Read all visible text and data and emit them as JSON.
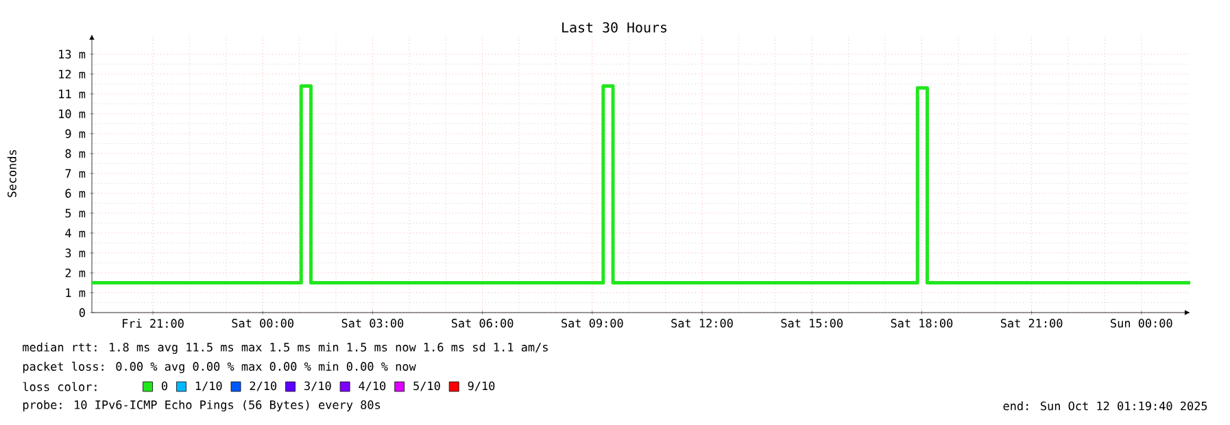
{
  "chart_data": {
    "type": "step",
    "title": "Last 30 Hours",
    "ylabel": "Seconds",
    "legend_title": "loss color:",
    "x": [
      "2025-10-10T19:20",
      "2025-10-11T01:03",
      "2025-10-11T01:19",
      "2025-10-11T09:18",
      "2025-10-11T09:34",
      "2025-10-11T17:53",
      "2025-10-11T18:09",
      "2025-10-12T01:20"
    ],
    "series": [
      {
        "name": "0",
        "color": "#22e61e",
        "values": [
          1.5,
          11.4,
          1.5,
          11.4,
          1.5,
          11.3,
          1.5,
          1.5
        ]
      },
      {
        "name": "1/10",
        "color": "#00b8ff",
        "values": [
          null,
          null,
          null,
          null,
          null,
          null,
          null,
          null
        ]
      },
      {
        "name": "2/10",
        "color": "#0059ff",
        "values": [
          null,
          null,
          null,
          null,
          null,
          null,
          null,
          null
        ]
      },
      {
        "name": "3/10",
        "color": "#5e00ff",
        "values": [
          null,
          null,
          null,
          null,
          null,
          null,
          null,
          null
        ]
      },
      {
        "name": "4/10",
        "color": "#7e00ff",
        "values": [
          null,
          null,
          null,
          null,
          null,
          null,
          null,
          null
        ]
      },
      {
        "name": "5/10",
        "color": "#dd00ff",
        "values": [
          null,
          null,
          null,
          null,
          null,
          null,
          null,
          null
        ]
      },
      {
        "name": "9/10",
        "color": "#ff0000",
        "values": [
          null,
          null,
          null,
          null,
          null,
          null,
          null,
          null
        ]
      }
    ],
    "xlim": [
      "2025-10-10T19:20",
      "2025-10-12T01:20"
    ],
    "xticks": [
      {
        "value": "2025-10-10T21:00",
        "label": "Fri 21:00"
      },
      {
        "value": "2025-10-11T00:00",
        "label": "Sat 00:00"
      },
      {
        "value": "2025-10-11T03:00",
        "label": "Sat 03:00"
      },
      {
        "value": "2025-10-11T06:00",
        "label": "Sat 06:00"
      },
      {
        "value": "2025-10-11T09:00",
        "label": "Sat 09:00"
      },
      {
        "value": "2025-10-11T12:00",
        "label": "Sat 12:00"
      },
      {
        "value": "2025-10-11T15:00",
        "label": "Sat 15:00"
      },
      {
        "value": "2025-10-11T18:00",
        "label": "Sat 18:00"
      },
      {
        "value": "2025-10-11T21:00",
        "label": "Sat 21:00"
      },
      {
        "value": "2025-10-12T00:00",
        "label": "Sun 00:00"
      }
    ],
    "ylim": [
      0,
      14
    ],
    "yticks": [
      0,
      {
        "value": 1,
        "label": "1 m"
      },
      {
        "value": 2,
        "label": "2 m"
      },
      {
        "value": 3,
        "label": "3 m"
      },
      {
        "value": 4,
        "label": "4 m"
      },
      {
        "value": 5,
        "label": "5 m"
      },
      {
        "value": 6,
        "label": "6 m"
      },
      {
        "value": 7,
        "label": "7 m"
      },
      {
        "value": 8,
        "label": "8 m"
      },
      {
        "value": 9,
        "label": "9 m"
      },
      {
        "value": 10,
        "label": "10 m"
      },
      {
        "value": 11,
        "label": "11 m"
      },
      {
        "value": 12,
        "label": "12 m"
      },
      {
        "value": 13,
        "label": "13 m"
      }
    ],
    "grid": true,
    "legend": "bottom",
    "line_style": "solid",
    "annotations": [
      "median rtt:  1.8 ms avg  11.5 ms max  1.5 ms min  1.5 ms now  1.6 ms sd  1.1   am/s",
      "packet loss: 0.00 % avg  0.00 % max  0.00 % min  0.00 % now",
      "probe:       10 IPv6-ICMP Echo Pings (56 Bytes) every 80s",
      "end: Sun Oct 12 01:19:40 2025"
    ]
  }
}
